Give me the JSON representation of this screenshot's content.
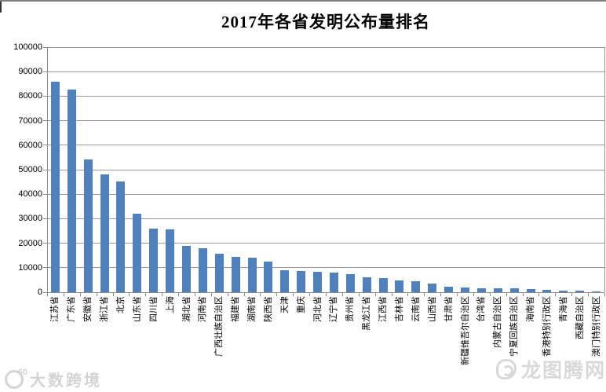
{
  "chart_data": {
    "type": "bar",
    "title": "2017年各省发明公布量排名",
    "categories": [
      "江苏省",
      "广东省",
      "安徽省",
      "浙江省",
      "北京",
      "山东省",
      "四川省",
      "上海",
      "湖北省",
      "河南省",
      "广西壮族自治区",
      "福建省",
      "湖南省",
      "陕西省",
      "天津",
      "重庆",
      "河北省",
      "辽宁省",
      "贵州省",
      "黑龙江省",
      "江西省",
      "吉林省",
      "云南省",
      "山西省",
      "甘肃省",
      "新疆维吾尔自治区",
      "台湾省",
      "内蒙古自治区",
      "宁夏回族自治区",
      "海南省",
      "香港特别行政区",
      "青海省",
      "西藏自治区",
      "澳门特别行政区"
    ],
    "values": [
      86000,
      82800,
      54300,
      48000,
      45300,
      32200,
      26100,
      25800,
      18900,
      17800,
      15600,
      14400,
      14000,
      12500,
      8900,
      8700,
      8400,
      8100,
      7300,
      6000,
      5700,
      4800,
      4400,
      3500,
      2400,
      1800,
      1700,
      1600,
      1500,
      1200,
      950,
      650,
      550,
      400
    ],
    "xlabel": "",
    "ylabel": "",
    "ylim": [
      0,
      100000
    ],
    "y_ticks": [
      0,
      10000,
      20000,
      30000,
      40000,
      50000,
      60000,
      70000,
      80000,
      90000,
      100000
    ],
    "y_tick_labels": [
      "0",
      "10000",
      "20000",
      "30000",
      "40000",
      "50000",
      "60000",
      "70000",
      "80000",
      "90000",
      "100000"
    ],
    "grid": true,
    "legend": "none",
    "bar_color": "#4f81bd",
    "gridline_color": "#999999",
    "axis_color": "#8c8c8c",
    "label_rotation_deg": -90
  },
  "watermarks": {
    "bottom_left_text": "大数跨境",
    "bottom_left_logo_badge": "60",
    "bottom_right_text": "龙图腾网"
  }
}
